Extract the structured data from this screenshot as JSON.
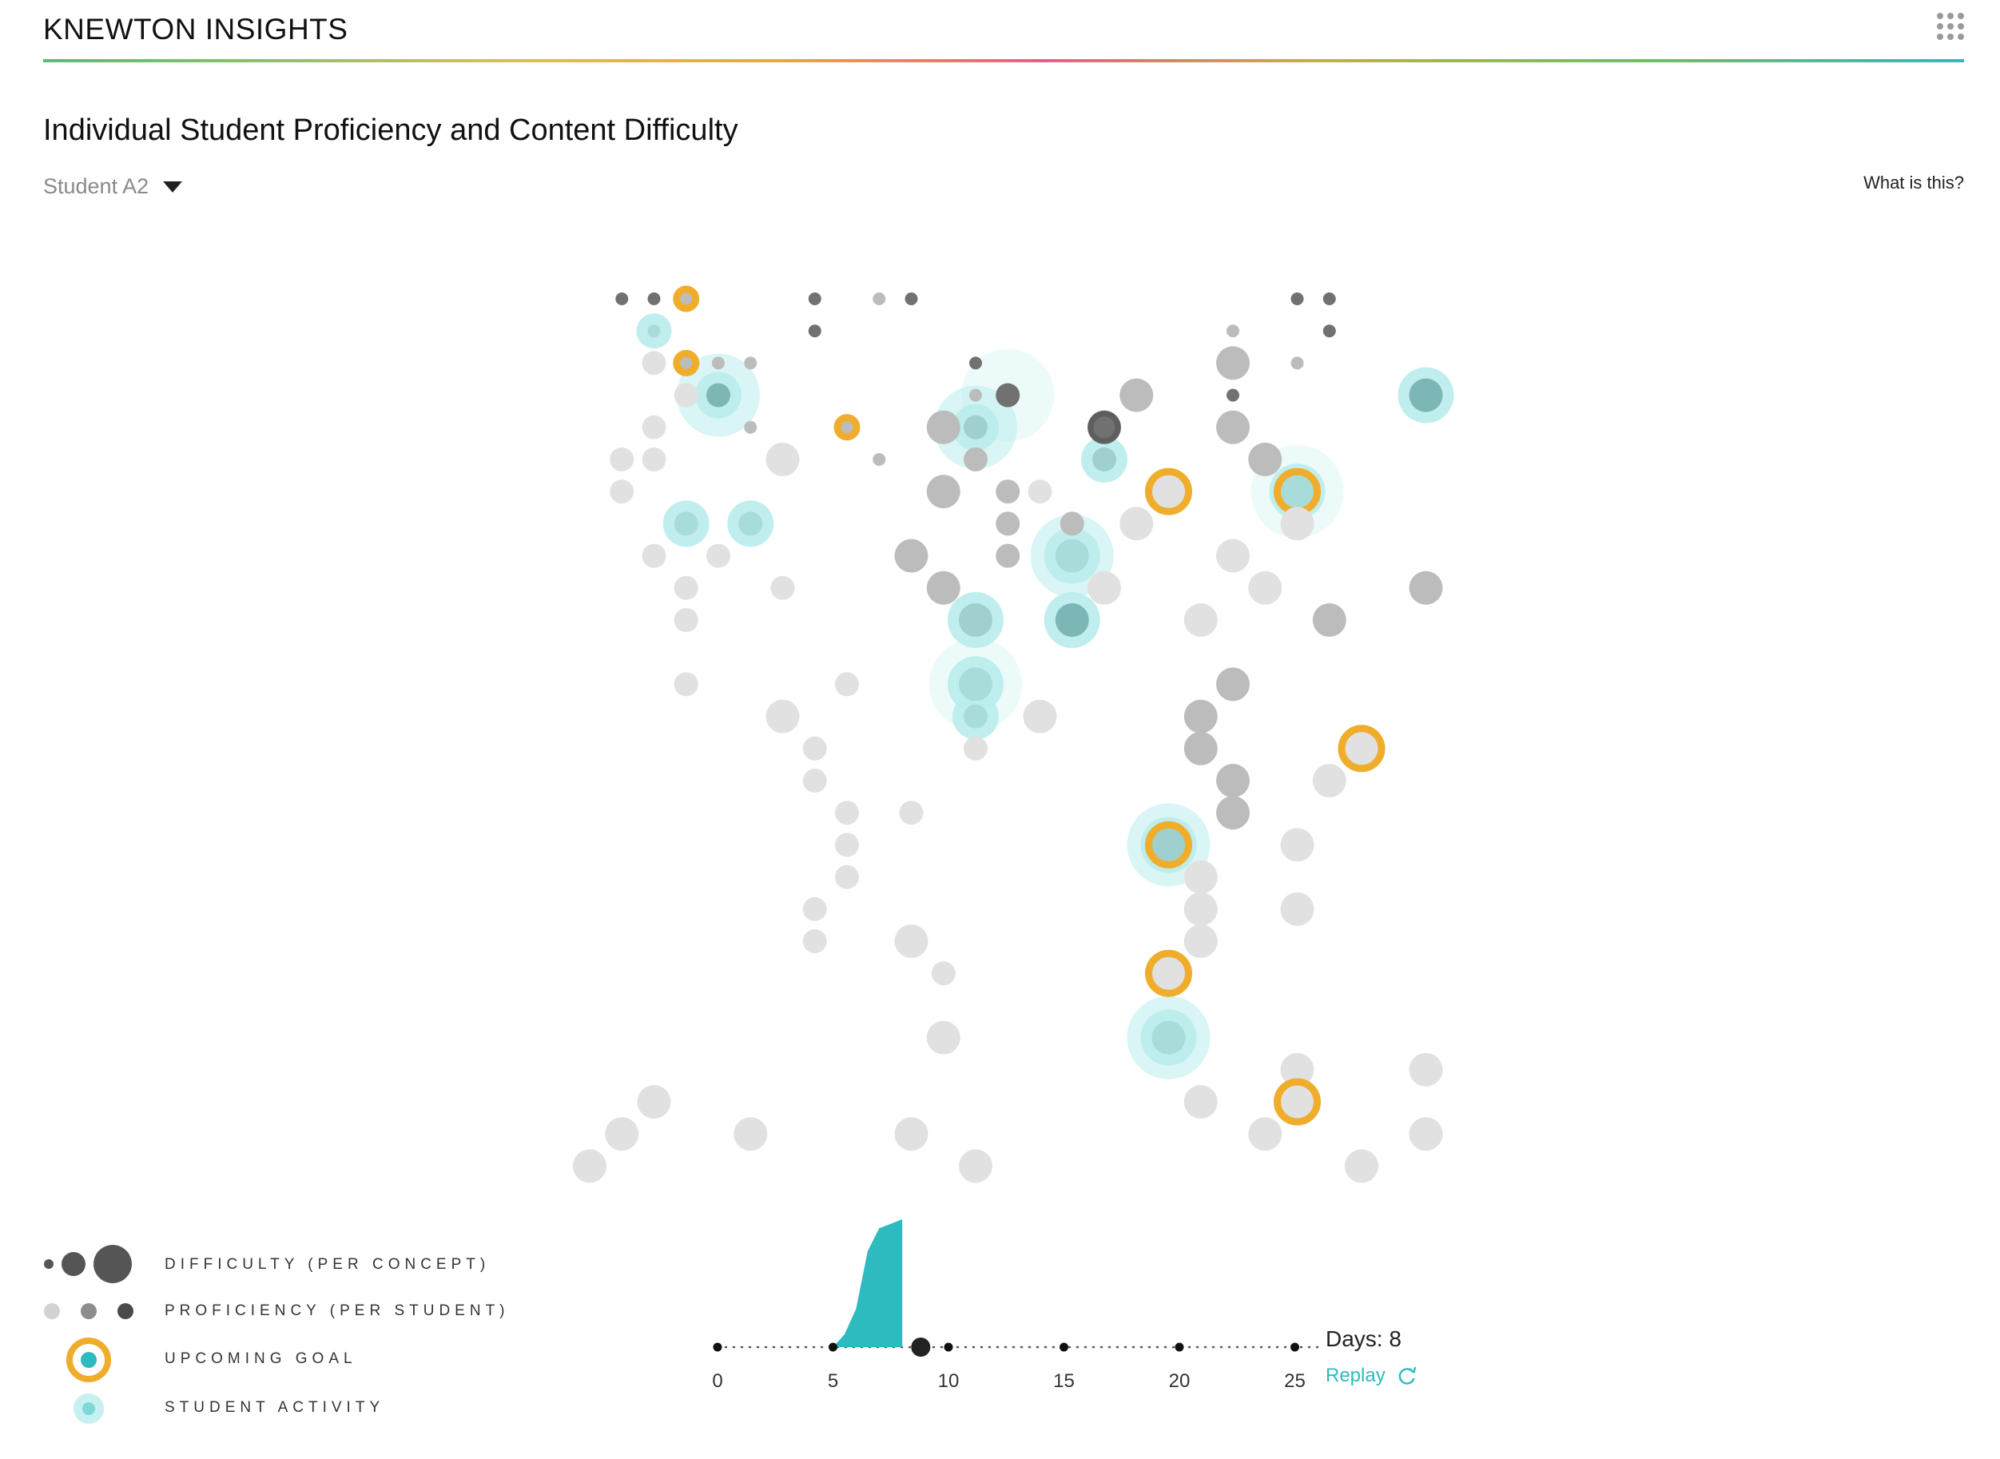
{
  "app": {
    "title": "KNEWTON INSIGHTS",
    "menu_icon": "grid-menu-icon"
  },
  "page": {
    "title": "Individual Student Proficiency and Content Difficulty",
    "student_select": {
      "selected": "Student A2",
      "icon": "caret-down-icon"
    },
    "help_link": "What is this?"
  },
  "colors": {
    "accent": "#f0ad2b",
    "activity": "#2dbbbf",
    "activity_halo": "#b9ecec",
    "proficiency_light": "#e1e1e1",
    "proficiency_mid": "#bcbcbc",
    "proficiency_dark": "#717171"
  },
  "legend": [
    {
      "label": "DIFFICULTY (PER CONCEPT)",
      "icon": "difficulty-size-icon"
    },
    {
      "label": "PROFICIENCY (PER STUDENT)",
      "icon": "proficiency-shade-icon"
    },
    {
      "label": "UPCOMING GOAL",
      "icon": "goal-ring-icon"
    },
    {
      "label": "STUDENT ACTIVITY",
      "icon": "activity-halo-icon"
    }
  ],
  "timeline": {
    "ticks": [
      0,
      5,
      10,
      15,
      20,
      25
    ],
    "tick_labels": [
      "0",
      "5",
      "10",
      "15",
      "20",
      "25"
    ],
    "current_day": 8,
    "activity_curve": [
      [
        5,
        0
      ],
      [
        5.5,
        0.1
      ],
      [
        6,
        0.3
      ],
      [
        6.5,
        0.75
      ],
      [
        7,
        0.93
      ],
      [
        8,
        1.0
      ]
    ],
    "days_label": "Days:",
    "days_value": "8",
    "replay_label": "Replay",
    "replay_icon": "replay-icon"
  },
  "chart_data": {
    "type": "scatter",
    "title": "",
    "xlabel": "",
    "ylabel": "",
    "xlim": [
      0,
      26
    ],
    "ylim": [
      0,
      28
    ],
    "note": "x = concept column, y = row (0 = top); size = difficulty, shade = proficiency",
    "points": [
      {
        "x": 1,
        "y": 0,
        "d": 1,
        "p": 3
      },
      {
        "x": 2,
        "y": 0,
        "d": 1,
        "p": 3
      },
      {
        "x": 3,
        "y": 0,
        "d": 1,
        "p": 2,
        "goal": true
      },
      {
        "x": 7,
        "y": 0,
        "d": 1,
        "p": 3
      },
      {
        "x": 9,
        "y": 0,
        "d": 1,
        "p": 2
      },
      {
        "x": 10,
        "y": 0,
        "d": 1,
        "p": 3
      },
      {
        "x": 22,
        "y": 0,
        "d": 1,
        "p": 3
      },
      {
        "x": 23,
        "y": 0,
        "d": 1,
        "p": 3
      },
      {
        "x": 2,
        "y": 1,
        "d": 1,
        "p": 1,
        "act": true
      },
      {
        "x": 7,
        "y": 1,
        "d": 1,
        "p": 3
      },
      {
        "x": 20,
        "y": 1,
        "d": 1,
        "p": 2
      },
      {
        "x": 23,
        "y": 1,
        "d": 1,
        "p": 3
      },
      {
        "x": 2,
        "y": 2,
        "d": 2,
        "p": 1
      },
      {
        "x": 3,
        "y": 2,
        "d": 1,
        "p": 2,
        "goal": true
      },
      {
        "x": 4,
        "y": 2,
        "d": 1,
        "p": 2
      },
      {
        "x": 5,
        "y": 2,
        "d": 1,
        "p": 2
      },
      {
        "x": 12,
        "y": 2,
        "d": 1,
        "p": 3
      },
      {
        "x": 20,
        "y": 2,
        "d": 3,
        "p": 2
      },
      {
        "x": 22,
        "y": 2,
        "d": 1,
        "p": 2
      },
      {
        "x": 3,
        "y": 3,
        "d": 2,
        "p": 1
      },
      {
        "x": 4,
        "y": 3,
        "d": 2,
        "p": 3,
        "act": true,
        "halo": "big"
      },
      {
        "x": 12,
        "y": 3,
        "d": 1,
        "p": 2
      },
      {
        "x": 13,
        "y": 3,
        "d": 2,
        "p": 3,
        "halo": "faint"
      },
      {
        "x": 17,
        "y": 3,
        "d": 3,
        "p": 2
      },
      {
        "x": 20,
        "y": 3,
        "d": 1,
        "p": 3
      },
      {
        "x": 26,
        "y": 3,
        "d": 3,
        "p": 3,
        "act": true
      },
      {
        "x": 2,
        "y": 4,
        "d": 2,
        "p": 1
      },
      {
        "x": 5,
        "y": 4,
        "d": 1,
        "p": 2
      },
      {
        "x": 8,
        "y": 4,
        "d": 1,
        "p": 2,
        "goal": true
      },
      {
        "x": 11,
        "y": 4,
        "d": 3,
        "p": 2
      },
      {
        "x": 12,
        "y": 4,
        "d": 2,
        "p": 2,
        "act": true,
        "halo": "big"
      },
      {
        "x": 16,
        "y": 4,
        "d": 3,
        "p": 3,
        "ring": true
      },
      {
        "x": 20,
        "y": 4,
        "d": 3,
        "p": 2
      },
      {
        "x": 1,
        "y": 5,
        "d": 2,
        "p": 1
      },
      {
        "x": 2,
        "y": 5,
        "d": 2,
        "p": 1
      },
      {
        "x": 6,
        "y": 5,
        "d": 3,
        "p": 1
      },
      {
        "x": 9,
        "y": 5,
        "d": 1,
        "p": 2
      },
      {
        "x": 12,
        "y": 5,
        "d": 2,
        "p": 2
      },
      {
        "x": 16,
        "y": 5,
        "d": 2,
        "p": 2,
        "act": true
      },
      {
        "x": 21,
        "y": 5,
        "d": 3,
        "p": 2
      },
      {
        "x": 1,
        "y": 6,
        "d": 2,
        "p": 1
      },
      {
        "x": 11,
        "y": 6,
        "d": 3,
        "p": 2
      },
      {
        "x": 13,
        "y": 6,
        "d": 2,
        "p": 2
      },
      {
        "x": 14,
        "y": 6,
        "d": 2,
        "p": 1
      },
      {
        "x": 18,
        "y": 6,
        "d": 3,
        "p": 1,
        "goal": true
      },
      {
        "x": 22,
        "y": 6,
        "d": 3,
        "p": 1,
        "goal": true,
        "act": true,
        "halo": "faint"
      },
      {
        "x": 3,
        "y": 7,
        "d": 2,
        "p": 1,
        "act": true
      },
      {
        "x": 5,
        "y": 7,
        "d": 2,
        "p": 1,
        "act": true
      },
      {
        "x": 13,
        "y": 7,
        "d": 2,
        "p": 2
      },
      {
        "x": 15,
        "y": 7,
        "d": 2,
        "p": 2
      },
      {
        "x": 17,
        "y": 7,
        "d": 3,
        "p": 1
      },
      {
        "x": 22,
        "y": 7,
        "d": 3,
        "p": 1
      },
      {
        "x": 2,
        "y": 8,
        "d": 2,
        "p": 1
      },
      {
        "x": 4,
        "y": 8,
        "d": 2,
        "p": 1
      },
      {
        "x": 10,
        "y": 8,
        "d": 3,
        "p": 2
      },
      {
        "x": 13,
        "y": 8,
        "d": 2,
        "p": 2
      },
      {
        "x": 15,
        "y": 8,
        "d": 3,
        "p": 1,
        "act": true,
        "halo": "big"
      },
      {
        "x": 20,
        "y": 8,
        "d": 3,
        "p": 1
      },
      {
        "x": 3,
        "y": 9,
        "d": 2,
        "p": 1
      },
      {
        "x": 6,
        "y": 9,
        "d": 2,
        "p": 1
      },
      {
        "x": 11,
        "y": 9,
        "d": 3,
        "p": 2
      },
      {
        "x": 16,
        "y": 9,
        "d": 3,
        "p": 1
      },
      {
        "x": 21,
        "y": 9,
        "d": 3,
        "p": 1
      },
      {
        "x": 26,
        "y": 9,
        "d": 3,
        "p": 2
      },
      {
        "x": 3,
        "y": 10,
        "d": 2,
        "p": 1
      },
      {
        "x": 12,
        "y": 10,
        "d": 3,
        "p": 2,
        "act": true
      },
      {
        "x": 15,
        "y": 10,
        "d": 3,
        "p": 3,
        "act": true
      },
      {
        "x": 19,
        "y": 10,
        "d": 3,
        "p": 1
      },
      {
        "x": 23,
        "y": 10,
        "d": 3,
        "p": 2
      },
      {
        "x": 3,
        "y": 12,
        "d": 2,
        "p": 1
      },
      {
        "x": 8,
        "y": 12,
        "d": 2,
        "p": 1
      },
      {
        "x": 12,
        "y": 12,
        "d": 3,
        "p": 1,
        "act": true,
        "halo": "faint"
      },
      {
        "x": 20,
        "y": 12,
        "d": 3,
        "p": 2
      },
      {
        "x": 6,
        "y": 13,
        "d": 3,
        "p": 1
      },
      {
        "x": 12,
        "y": 13,
        "d": 2,
        "p": 1,
        "act": true
      },
      {
        "x": 14,
        "y": 13,
        "d": 3,
        "p": 1
      },
      {
        "x": 19,
        "y": 13,
        "d": 3,
        "p": 2
      },
      {
        "x": 7,
        "y": 14,
        "d": 2,
        "p": 1
      },
      {
        "x": 12,
        "y": 14,
        "d": 2,
        "p": 1
      },
      {
        "x": 19,
        "y": 14,
        "d": 3,
        "p": 2
      },
      {
        "x": 24,
        "y": 14,
        "d": 3,
        "p": 1,
        "goal": true
      },
      {
        "x": 7,
        "y": 15,
        "d": 2,
        "p": 1
      },
      {
        "x": 20,
        "y": 15,
        "d": 3,
        "p": 2
      },
      {
        "x": 23,
        "y": 15,
        "d": 3,
        "p": 1
      },
      {
        "x": 8,
        "y": 16,
        "d": 2,
        "p": 1
      },
      {
        "x": 10,
        "y": 16,
        "d": 2,
        "p": 1
      },
      {
        "x": 20,
        "y": 16,
        "d": 3,
        "p": 2
      },
      {
        "x": 8,
        "y": 17,
        "d": 2,
        "p": 1
      },
      {
        "x": 18,
        "y": 17,
        "d": 3,
        "p": 2,
        "goal": true,
        "act": true,
        "halo": "big"
      },
      {
        "x": 22,
        "y": 17,
        "d": 3,
        "p": 1
      },
      {
        "x": 8,
        "y": 18,
        "d": 2,
        "p": 1
      },
      {
        "x": 19,
        "y": 18,
        "d": 3,
        "p": 1
      },
      {
        "x": 7,
        "y": 19,
        "d": 2,
        "p": 1
      },
      {
        "x": 19,
        "y": 19,
        "d": 3,
        "p": 1
      },
      {
        "x": 22,
        "y": 19,
        "d": 3,
        "p": 1
      },
      {
        "x": 7,
        "y": 20,
        "d": 2,
        "p": 1
      },
      {
        "x": 10,
        "y": 20,
        "d": 3,
        "p": 1
      },
      {
        "x": 19,
        "y": 20,
        "d": 3,
        "p": 1
      },
      {
        "x": 11,
        "y": 21,
        "d": 2,
        "p": 1
      },
      {
        "x": 18,
        "y": 21,
        "d": 3,
        "p": 1,
        "goal": true
      },
      {
        "x": 11,
        "y": 23,
        "d": 3,
        "p": 1
      },
      {
        "x": 18,
        "y": 23,
        "d": 3,
        "p": 1,
        "act": true,
        "halo": "big"
      },
      {
        "x": 22,
        "y": 24,
        "d": 3,
        "p": 1
      },
      {
        "x": 26,
        "y": 24,
        "d": 3,
        "p": 1
      },
      {
        "x": 2,
        "y": 25,
        "d": 3,
        "p": 1
      },
      {
        "x": 19,
        "y": 25,
        "d": 3,
        "p": 1
      },
      {
        "x": 22,
        "y": 25,
        "d": 3,
        "p": 1,
        "goal": true
      },
      {
        "x": 1,
        "y": 26,
        "d": 3,
        "p": 1
      },
      {
        "x": 5,
        "y": 26,
        "d": 3,
        "p": 1
      },
      {
        "x": 10,
        "y": 26,
        "d": 3,
        "p": 1
      },
      {
        "x": 21,
        "y": 26,
        "d": 3,
        "p": 1
      },
      {
        "x": 26,
        "y": 26,
        "d": 3,
        "p": 1
      },
      {
        "x": 0,
        "y": 27,
        "d": 3,
        "p": 1
      },
      {
        "x": 12,
        "y": 27,
        "d": 3,
        "p": 1
      },
      {
        "x": 24,
        "y": 27,
        "d": 3,
        "p": 1
      }
    ]
  }
}
